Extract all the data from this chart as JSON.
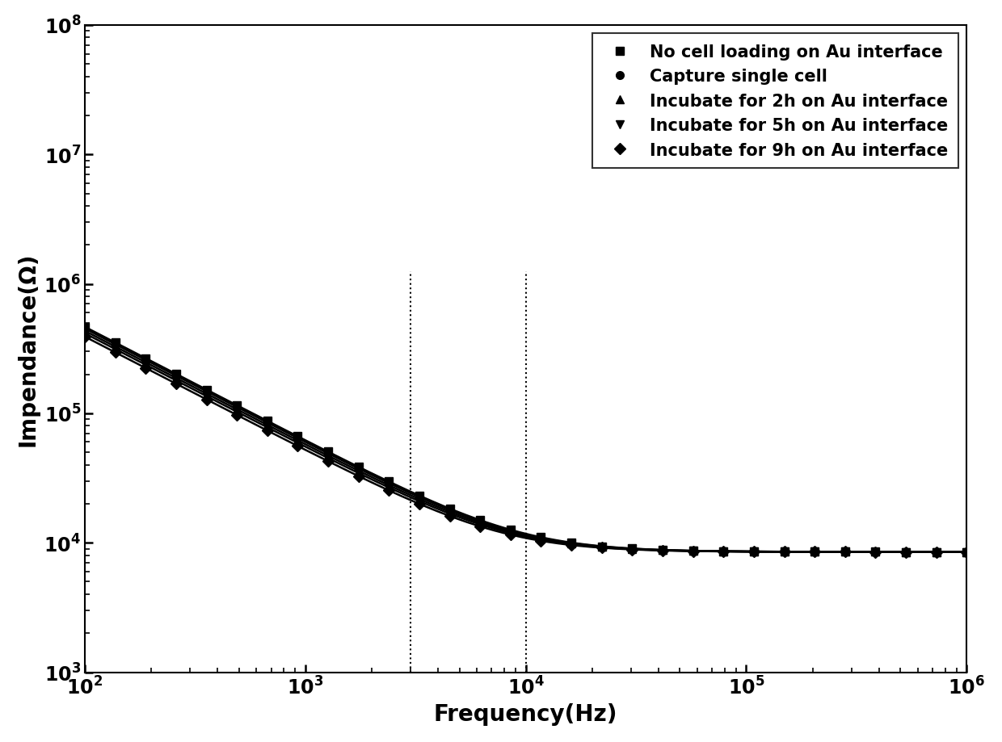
{
  "xlabel": "Frequency(Hz)",
  "ylabel": "Impendance(Ω)",
  "xlim": [
    100,
    1000000
  ],
  "ylim": [
    1000,
    100000000
  ],
  "vline1_x": 3000,
  "vline2_x": 10000,
  "series": [
    {
      "label": "No cell loading on Au interface",
      "marker": "s",
      "R_high": 8500,
      "C": 1.8e-09
    },
    {
      "label": "Capture single cell",
      "marker": "o",
      "R_high": 8500,
      "C": 1.95e-09
    },
    {
      "label": "Incubate for 2h on Au interface",
      "marker": "^",
      "R_high": 8500,
      "C": 2.1e-09
    },
    {
      "label": "Incubate for 5h on Au interface",
      "marker": "v",
      "R_high": 8500,
      "C": 2.3e-09
    },
    {
      "label": "Incubate for 9h on Au interface",
      "marker": "D",
      "R_high": 8500,
      "C": 2.55e-09
    }
  ],
  "low_freq_scale": [
    1.0,
    0.97,
    0.93,
    0.89,
    0.84
  ],
  "line_color": "#000000",
  "background_color": "#ffffff",
  "label_fontsize": 20,
  "tick_fontsize": 17,
  "legend_fontsize": 15,
  "linewidth": 1.8,
  "markersize": 7,
  "marker_count": 30
}
